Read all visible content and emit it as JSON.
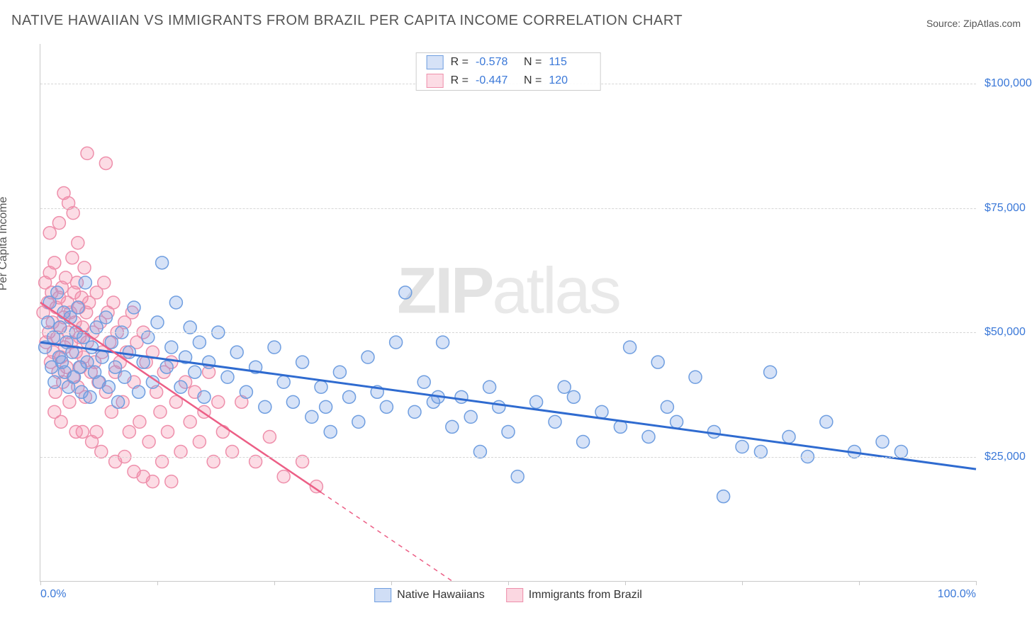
{
  "header": {
    "title": "NATIVE HAWAIIAN VS IMMIGRANTS FROM BRAZIL PER CAPITA INCOME CORRELATION CHART",
    "source_prefix": "Source: ",
    "source_name": "ZipAtlas.com"
  },
  "watermark": {
    "part1": "ZIP",
    "part2": "atlas"
  },
  "chart": {
    "type": "scatter",
    "ylabel": "Per Capita Income",
    "xlim": [
      0,
      100
    ],
    "ylim": [
      0,
      108000
    ],
    "yticks": [
      25000,
      50000,
      75000,
      100000
    ],
    "ytick_labels": [
      "$25,000",
      "$50,000",
      "$75,000",
      "$100,000"
    ],
    "xtick_left": "0.0%",
    "xtick_right": "100.0%",
    "xtick_positions": [
      0,
      12.5,
      25,
      37.5,
      50,
      62.5,
      75,
      87.5,
      100
    ],
    "grid_color": "#d6d6d6",
    "axis_color": "#c9c9c9",
    "marker_radius": 9,
    "marker_stroke_width": 1.5,
    "series": [
      {
        "name": "Native Hawaiians",
        "fill": "rgba(120,160,230,0.30)",
        "stroke": "#6f9ee0",
        "line_color": "#2f6bd0",
        "line_width": 3,
        "trend": {
          "x1": 0,
          "y1": 48000,
          "x2": 100,
          "y2": 22500,
          "dash_after_x": null
        },
        "R": "-0.578",
        "N": "115",
        "points": [
          [
            0.5,
            47000
          ],
          [
            0.8,
            52000
          ],
          [
            1.0,
            56000
          ],
          [
            1.2,
            43000
          ],
          [
            1.4,
            49000
          ],
          [
            1.5,
            40000
          ],
          [
            1.8,
            58000
          ],
          [
            2.0,
            45000
          ],
          [
            2.1,
            51000
          ],
          [
            2.3,
            44000
          ],
          [
            2.5,
            54000
          ],
          [
            2.6,
            42000
          ],
          [
            2.8,
            48000
          ],
          [
            3.0,
            39000
          ],
          [
            3.2,
            53000
          ],
          [
            3.4,
            46000
          ],
          [
            3.6,
            41000
          ],
          [
            3.8,
            50000
          ],
          [
            4.0,
            55000
          ],
          [
            4.2,
            43000
          ],
          [
            4.4,
            38000
          ],
          [
            4.6,
            49000
          ],
          [
            4.8,
            60000
          ],
          [
            5.0,
            44000
          ],
          [
            5.3,
            37000
          ],
          [
            5.5,
            47000
          ],
          [
            5.8,
            42000
          ],
          [
            6.0,
            51000
          ],
          [
            6.3,
            40000
          ],
          [
            6.6,
            45000
          ],
          [
            7.0,
            53000
          ],
          [
            7.3,
            39000
          ],
          [
            7.6,
            48000
          ],
          [
            8.0,
            43000
          ],
          [
            8.3,
            36000
          ],
          [
            8.7,
            50000
          ],
          [
            9.0,
            41000
          ],
          [
            9.5,
            46000
          ],
          [
            10.0,
            55000
          ],
          [
            10.5,
            38000
          ],
          [
            11.0,
            44000
          ],
          [
            11.5,
            49000
          ],
          [
            12.0,
            40000
          ],
          [
            12.5,
            52000
          ],
          [
            13.0,
            64000
          ],
          [
            13.5,
            43000
          ],
          [
            14.0,
            47000
          ],
          [
            14.5,
            56000
          ],
          [
            15.0,
            39000
          ],
          [
            15.5,
            45000
          ],
          [
            16.0,
            51000
          ],
          [
            16.5,
            42000
          ],
          [
            17.0,
            48000
          ],
          [
            17.5,
            37000
          ],
          [
            18.0,
            44000
          ],
          [
            19.0,
            50000
          ],
          [
            20.0,
            41000
          ],
          [
            21.0,
            46000
          ],
          [
            22.0,
            38000
          ],
          [
            23.0,
            43000
          ],
          [
            24.0,
            35000
          ],
          [
            25.0,
            47000
          ],
          [
            26.0,
            40000
          ],
          [
            27.0,
            36000
          ],
          [
            28.0,
            44000
          ],
          [
            29.0,
            33000
          ],
          [
            30.0,
            39000
          ],
          [
            30.5,
            35000
          ],
          [
            31.0,
            30000
          ],
          [
            32.0,
            42000
          ],
          [
            33.0,
            37000
          ],
          [
            34.0,
            32000
          ],
          [
            35.0,
            45000
          ],
          [
            36.0,
            38000
          ],
          [
            37.0,
            35000
          ],
          [
            38.0,
            48000
          ],
          [
            39.0,
            58000
          ],
          [
            40.0,
            34000
          ],
          [
            41.0,
            40000
          ],
          [
            42.0,
            36000
          ],
          [
            42.5,
            37000
          ],
          [
            43.0,
            48000
          ],
          [
            44.0,
            31000
          ],
          [
            45.0,
            37000
          ],
          [
            46.0,
            33000
          ],
          [
            47.0,
            26000
          ],
          [
            48.0,
            39000
          ],
          [
            49.0,
            35000
          ],
          [
            50.0,
            30000
          ],
          [
            51.0,
            21000
          ],
          [
            53.0,
            36000
          ],
          [
            55.0,
            32000
          ],
          [
            56.0,
            39000
          ],
          [
            57.0,
            37000
          ],
          [
            58.0,
            28000
          ],
          [
            60.0,
            34000
          ],
          [
            62.0,
            31000
          ],
          [
            63.0,
            47000
          ],
          [
            65.0,
            29000
          ],
          [
            66.0,
            44000
          ],
          [
            67.0,
            35000
          ],
          [
            68.0,
            32000
          ],
          [
            70.0,
            41000
          ],
          [
            72.0,
            30000
          ],
          [
            73.0,
            17000
          ],
          [
            75.0,
            27000
          ],
          [
            77.0,
            26000
          ],
          [
            78.0,
            42000
          ],
          [
            80.0,
            29000
          ],
          [
            82.0,
            25000
          ],
          [
            84.0,
            32000
          ],
          [
            87.0,
            26000
          ],
          [
            90.0,
            28000
          ],
          [
            92.0,
            26000
          ]
        ]
      },
      {
        "name": "Immigrants from Brazil",
        "fill": "rgba(244,140,170,0.30)",
        "stroke": "#ee8fab",
        "line_color": "#ec5f86",
        "line_width": 2.5,
        "trend": {
          "x1": 0,
          "y1": 56000,
          "x2": 44,
          "y2": 0,
          "dash_after_x": 30
        },
        "R": "-0.447",
        "N": "120",
        "points": [
          [
            0.3,
            54000
          ],
          [
            0.5,
            60000
          ],
          [
            0.6,
            48000
          ],
          [
            0.8,
            56000
          ],
          [
            0.9,
            50000
          ],
          [
            1.0,
            62000
          ],
          [
            1.1,
            44000
          ],
          [
            1.2,
            58000
          ],
          [
            1.3,
            52000
          ],
          [
            1.4,
            46000
          ],
          [
            1.5,
            64000
          ],
          [
            1.6,
            38000
          ],
          [
            1.7,
            55000
          ],
          [
            1.8,
            49000
          ],
          [
            1.9,
            42000
          ],
          [
            2.0,
            57000
          ],
          [
            2.1,
            51000
          ],
          [
            2.2,
            45000
          ],
          [
            2.3,
            59000
          ],
          [
            2.4,
            40000
          ],
          [
            2.5,
            53000
          ],
          [
            2.6,
            47000
          ],
          [
            2.7,
            61000
          ],
          [
            2.8,
            43000
          ],
          [
            2.9,
            56000
          ],
          [
            3.0,
            50000
          ],
          [
            3.1,
            36000
          ],
          [
            3.2,
            54000
          ],
          [
            3.3,
            48000
          ],
          [
            3.4,
            65000
          ],
          [
            3.5,
            41000
          ],
          [
            3.6,
            58000
          ],
          [
            3.7,
            52000
          ],
          [
            3.8,
            46000
          ],
          [
            3.9,
            60000
          ],
          [
            4.0,
            39000
          ],
          [
            4.1,
            55000
          ],
          [
            4.2,
            49000
          ],
          [
            4.3,
            43000
          ],
          [
            4.4,
            57000
          ],
          [
            4.5,
            51000
          ],
          [
            4.6,
            45000
          ],
          [
            4.7,
            63000
          ],
          [
            4.8,
            37000
          ],
          [
            4.9,
            54000
          ],
          [
            5.0,
            48000
          ],
          [
            5.2,
            56000
          ],
          [
            5.4,
            42000
          ],
          [
            5.6,
            50000
          ],
          [
            5.8,
            44000
          ],
          [
            6.0,
            58000
          ],
          [
            6.2,
            40000
          ],
          [
            6.4,
            52000
          ],
          [
            6.6,
            46000
          ],
          [
            6.8,
            60000
          ],
          [
            7.0,
            38000
          ],
          [
            7.2,
            54000
          ],
          [
            7.4,
            48000
          ],
          [
            7.6,
            34000
          ],
          [
            7.8,
            56000
          ],
          [
            8.0,
            42000
          ],
          [
            8.2,
            50000
          ],
          [
            8.5,
            44000
          ],
          [
            8.8,
            36000
          ],
          [
            9.0,
            52000
          ],
          [
            9.2,
            46000
          ],
          [
            9.5,
            30000
          ],
          [
            9.8,
            54000
          ],
          [
            10.0,
            40000
          ],
          [
            10.3,
            48000
          ],
          [
            10.6,
            32000
          ],
          [
            11.0,
            50000
          ],
          [
            11.3,
            44000
          ],
          [
            11.6,
            28000
          ],
          [
            12.0,
            46000
          ],
          [
            12.4,
            38000
          ],
          [
            12.8,
            34000
          ],
          [
            13.2,
            42000
          ],
          [
            13.6,
            30000
          ],
          [
            14.0,
            44000
          ],
          [
            14.5,
            36000
          ],
          [
            15.0,
            26000
          ],
          [
            15.5,
            40000
          ],
          [
            16.0,
            32000
          ],
          [
            16.5,
            38000
          ],
          [
            17.0,
            28000
          ],
          [
            17.5,
            34000
          ],
          [
            18.0,
            42000
          ],
          [
            18.5,
            24000
          ],
          [
            19.0,
            36000
          ],
          [
            3.0,
            76000
          ],
          [
            3.5,
            74000
          ],
          [
            1.0,
            70000
          ],
          [
            2.0,
            72000
          ],
          [
            4.0,
            68000
          ],
          [
            2.5,
            78000
          ],
          [
            5.0,
            86000
          ],
          [
            7.0,
            84000
          ],
          [
            4.5,
            30000
          ],
          [
            5.5,
            28000
          ],
          [
            6.5,
            26000
          ],
          [
            8.0,
            24000
          ],
          [
            10.0,
            22000
          ],
          [
            12.0,
            20000
          ],
          [
            1.5,
            34000
          ],
          [
            2.2,
            32000
          ],
          [
            3.8,
            30000
          ],
          [
            6.0,
            30000
          ],
          [
            9.0,
            25000
          ],
          [
            13.0,
            24000
          ],
          [
            11.0,
            21000
          ],
          [
            14.0,
            20000
          ],
          [
            19.5,
            30000
          ],
          [
            20.5,
            26000
          ],
          [
            21.5,
            36000
          ],
          [
            23.0,
            24000
          ],
          [
            24.5,
            29000
          ],
          [
            26.0,
            21000
          ],
          [
            28.0,
            24000
          ],
          [
            29.5,
            19000
          ]
        ]
      }
    ]
  },
  "bottom_legend": [
    {
      "label": "Native Hawaiians",
      "fill": "rgba(120,160,230,0.35)",
      "stroke": "#6f9ee0"
    },
    {
      "label": "Immigrants from Brazil",
      "fill": "rgba(244,140,170,0.35)",
      "stroke": "#ee8fab"
    }
  ]
}
